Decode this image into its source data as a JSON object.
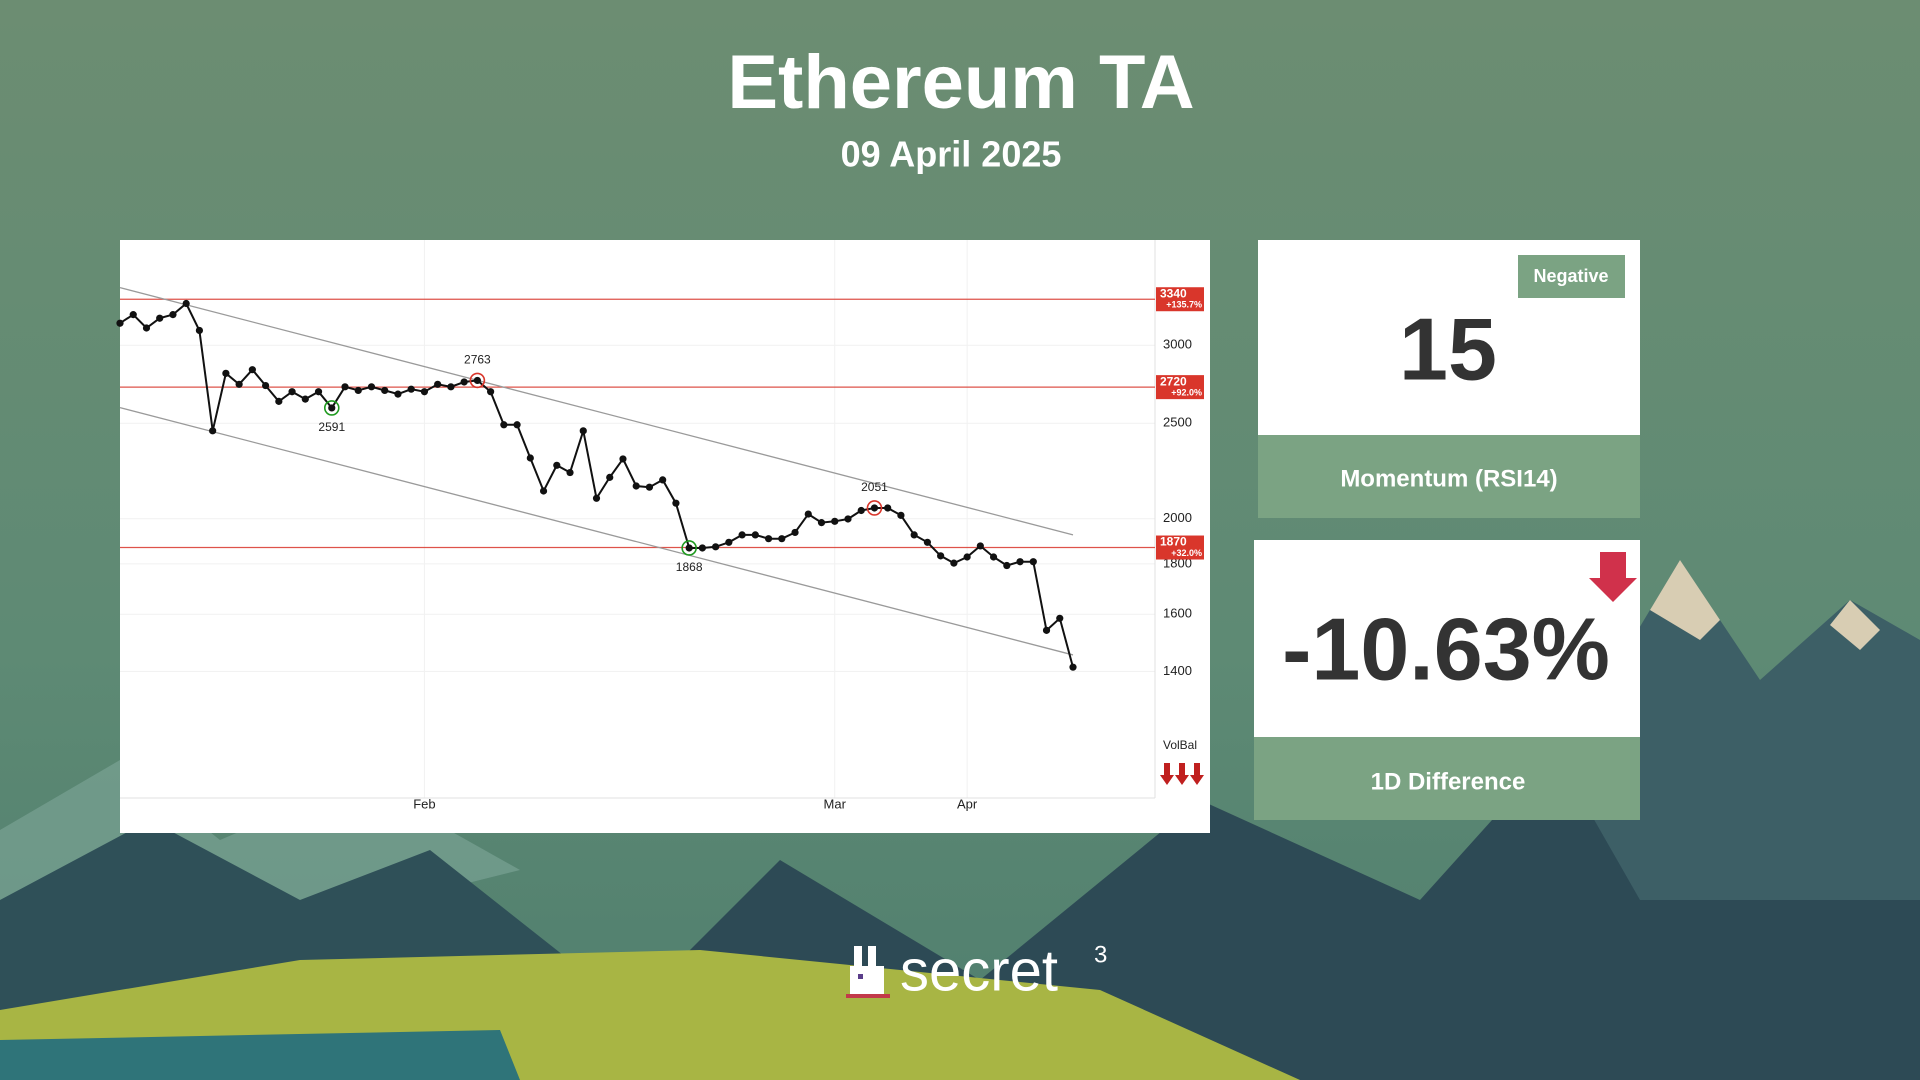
{
  "header": {
    "title": "Ethereum TA",
    "date": "09 April 2025"
  },
  "chart_data": {
    "type": "line",
    "log_scale": true,
    "categories": [
      null,
      null,
      null,
      null,
      null,
      null,
      null,
      null,
      null,
      null,
      null,
      null,
      null,
      null,
      null,
      null,
      null,
      null,
      null,
      null,
      null,
      null,
      null,
      "Feb",
      null,
      null,
      null,
      null,
      null,
      null,
      null,
      null,
      null,
      null,
      null,
      null,
      null,
      null,
      null,
      null,
      null,
      null,
      null,
      null,
      null,
      null,
      null,
      null,
      null,
      null,
      null,
      null,
      null,
      null,
      "Mar",
      null,
      null,
      null,
      null,
      null,
      null,
      null,
      null,
      null,
      "Apr",
      null,
      null,
      null,
      null,
      null,
      null,
      null,
      null
    ],
    "series": [
      {
        "color": "#111111",
        "values": [
          3158,
          3222,
          3123,
          3195,
          3222,
          3307,
          3105,
          2456,
          2809,
          2738,
          2833,
          2730,
          2631,
          2691,
          2645,
          2691,
          2591,
          2722,
          2699,
          2722,
          2699,
          2676,
          2707,
          2691,
          2738,
          2722,
          2753,
          2763,
          2691,
          2491,
          2491,
          2305,
          2134,
          2266,
          2228,
          2456,
          2098,
          2203,
          2300,
          2159,
          2153,
          2190,
          2074,
          1868,
          1868,
          1873,
          1893,
          1926,
          1926,
          1909,
          1909,
          1937,
          2022,
          1982,
          1988,
          1999,
          2039,
          2051,
          2051,
          2016,
          1926,
          1893,
          1834,
          1803,
          1829,
          1877,
          1829,
          1793,
          1809,
          1809,
          1541,
          1585,
          1414
        ]
      }
    ],
    "ylim": [
      1350,
      3800
    ],
    "yticks": [
      1400,
      1600,
      1800,
      2000,
      2500,
      3000
    ],
    "grid": true,
    "levels": [
      {
        "value": 3340,
        "change": "+135.7%"
      },
      {
        "value": 2720,
        "change": "+92.0%"
      },
      {
        "value": 1870,
        "change": "+32.0%"
      }
    ],
    "level_color": "#d9362b",
    "trend_lines": [
      {
        "x": [
          0,
          72
        ],
        "y": [
          3432,
          1926
        ]
      },
      {
        "x": [
          0,
          72
        ],
        "y": [
          2593,
          1455
        ]
      }
    ],
    "annotations": [
      {
        "x": 16,
        "color": "#1f9a1f"
      },
      {
        "x": 27,
        "color": "#d9362b"
      },
      {
        "x": 43,
        "color": "#1f9a1f"
      },
      {
        "x": 57,
        "color": "#d9362b"
      }
    ],
    "volume_label": "VolBal"
  },
  "cards": [
    {
      "badge": "Negative",
      "value": 15,
      "label": "Momentum (RSI14)"
    },
    {
      "value": "-10.63%",
      "label": "1D Difference"
    }
  ],
  "footer": {
    "brand": "secret",
    "superscript": "3"
  }
}
